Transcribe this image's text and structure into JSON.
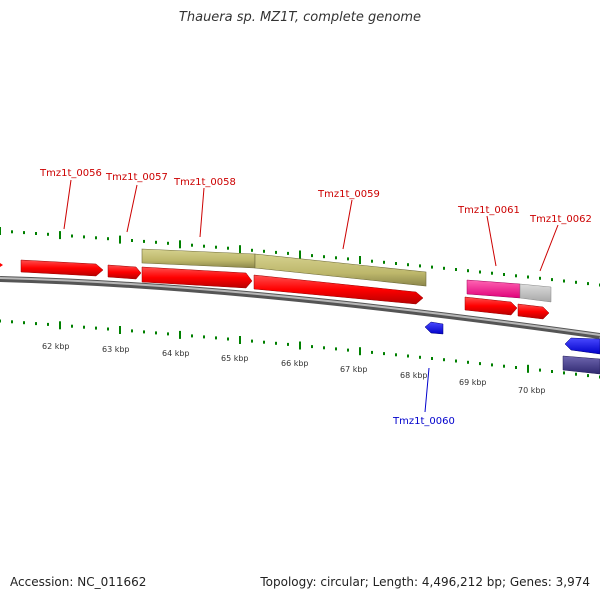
{
  "title": "Thauera sp. MZ1T, complete genome",
  "footer": {
    "accession": "Accession: NC_011662",
    "summary": "Topology: circular; Length: 4,496,212 bp; Genes: 3,974"
  },
  "colors": {
    "cds": "#ff0000",
    "gene_bar": "#bdb76b",
    "backbone": "#808080",
    "tick": "#008000",
    "label_top": "#cc0000",
    "label_bottom": "#0000cc",
    "magenta": "#ff1493",
    "grey": "#c0c0c0",
    "blue": "#0000ff",
    "navy": "#483d8b"
  },
  "kbp_labels": [
    "62 kbp",
    "63 kbp",
    "64 kbp",
    "65 kbp",
    "66 kbp",
    "67 kbp",
    "68 kbp",
    "69 kbp",
    "70 kbp"
  ],
  "gene_labels": {
    "g56": "Tmz1t_0056",
    "g57": "Tmz1t_0057",
    "g58": "Tmz1t_0058",
    "g59": "Tmz1t_0059",
    "g60": "Tmz1t_0060",
    "g61": "Tmz1t_0061",
    "g62": "Tmz1t_0062"
  }
}
